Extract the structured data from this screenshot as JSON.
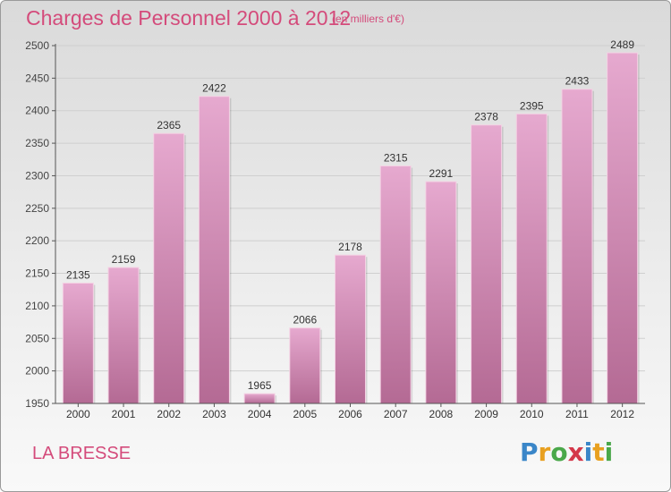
{
  "header": {
    "title": "Charges de Personnel 2000 à 2012",
    "subtitle": "(en milliers d'€)"
  },
  "footer": {
    "city": "LA BRESSE",
    "logo_text": "Proxiti"
  },
  "colors": {
    "bar_light": "#e6a9cf",
    "bar_dark": "#b46a94",
    "accent": "#d44b7b",
    "grid": "#cfcfcf",
    "axis": "#555555"
  },
  "chart_data": {
    "type": "bar",
    "title": "Charges de Personnel 2000 à 2012",
    "subtitle": "(en milliers d'€)",
    "categories": [
      "2000",
      "2001",
      "2002",
      "2003",
      "2004",
      "2005",
      "2006",
      "2007",
      "2008",
      "2009",
      "2010",
      "2011",
      "2012"
    ],
    "values": [
      2135,
      2159,
      2365,
      2422,
      1965,
      2066,
      2178,
      2315,
      2291,
      2378,
      2395,
      2433,
      2489
    ],
    "ylim": [
      1950,
      2500
    ],
    "yticks": [
      1950,
      2000,
      2050,
      2100,
      2150,
      2200,
      2250,
      2300,
      2350,
      2400,
      2450,
      2500
    ],
    "grid": true,
    "data_labels": true,
    "xlabel": "",
    "ylabel": ""
  }
}
